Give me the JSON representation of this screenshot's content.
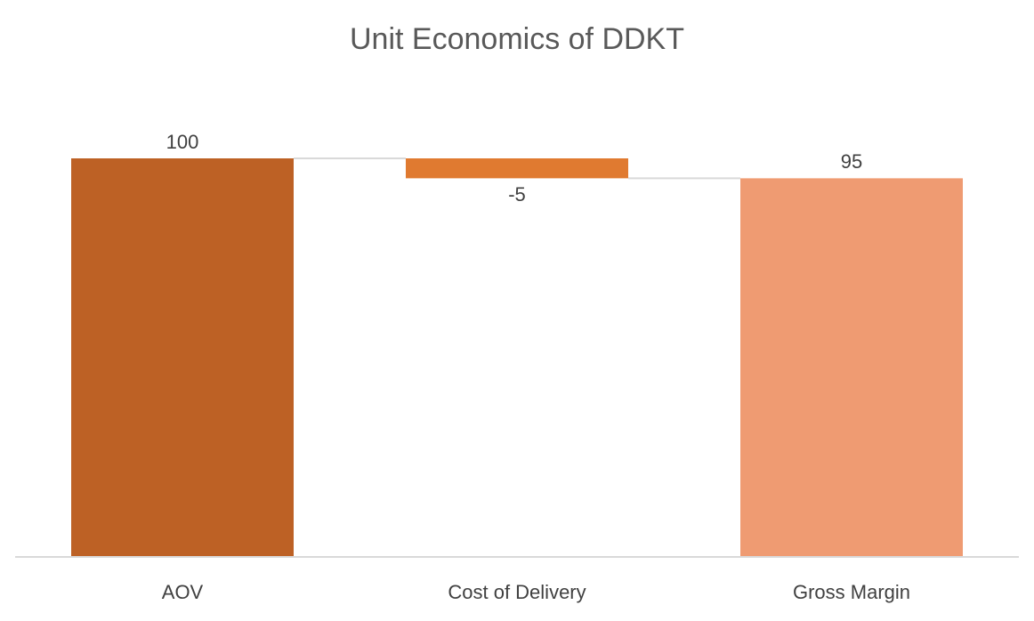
{
  "chart_data": {
    "type": "waterfall",
    "title": "Unit Economics of DDKT",
    "categories": [
      "AOV",
      "Cost of Delivery",
      "Gross Margin"
    ],
    "values": [
      100,
      -5,
      95
    ],
    "measures": [
      "absolute",
      "relative",
      "total"
    ],
    "colors": [
      "#bd6125",
      "#e07a30",
      "#ef9b72"
    ],
    "ylim": [
      0,
      100
    ]
  }
}
